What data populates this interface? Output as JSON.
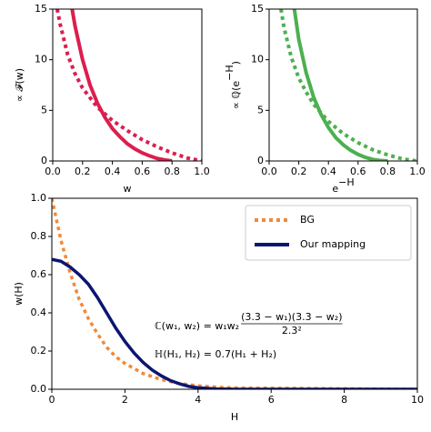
{
  "chart_data": [
    {
      "type": "line",
      "xlabel": {
        "base": "w"
      },
      "ylabel": {
        "base": "∝ 𝓕(w)"
      },
      "xlim": [
        0,
        1
      ],
      "ylim": [
        0,
        15
      ],
      "xticks": [
        {
          "value": 0,
          "label": "0.0"
        },
        {
          "value": 0.2,
          "label": "0.2"
        },
        {
          "value": 0.4,
          "label": "0.4"
        },
        {
          "value": 0.6,
          "label": "0.6"
        },
        {
          "value": 0.8,
          "label": "0.8"
        },
        {
          "value": 1,
          "label": "1.0"
        }
      ],
      "yticks": [
        0,
        5,
        10,
        15
      ],
      "series": [
        {
          "color": "#dc1e4e",
          "style": "dotted",
          "x": [
            0.03,
            0.05,
            0.1,
            0.15,
            0.2,
            0.3,
            0.4,
            0.5,
            0.6,
            0.7,
            0.8,
            0.9,
            1.0
          ],
          "values": [
            15,
            13.5,
            10.5,
            8.6,
            7.2,
            5.3,
            4,
            3,
            2.1,
            1.4,
            0.8,
            0.3,
            0
          ]
        },
        {
          "color": "#dc1e4e",
          "style": "solid",
          "x": [
            0.13,
            0.15,
            0.2,
            0.25,
            0.3,
            0.35,
            0.4,
            0.45,
            0.5,
            0.55,
            0.6,
            0.65,
            0.7,
            0.75,
            0.8
          ],
          "values": [
            15,
            13.3,
            10,
            7.5,
            5.7,
            4.3,
            3.2,
            2.4,
            1.7,
            1.2,
            0.8,
            0.5,
            0.25,
            0.1,
            0
          ]
        }
      ]
    },
    {
      "type": "line",
      "xlabel": {
        "base": "e",
        "sup": "−H"
      },
      "ylabel": {
        "base": "∝ ℚ(e",
        "sup": "−H",
        "tail": ")"
      },
      "xlim": [
        0,
        1
      ],
      "ylim": [
        0,
        15
      ],
      "xticks": [
        {
          "value": 0,
          "label": "0.0"
        },
        {
          "value": 0.2,
          "label": "0.2"
        },
        {
          "value": 0.4,
          "label": "0.4"
        },
        {
          "value": 0.6,
          "label": "0.6"
        },
        {
          "value": 0.8,
          "label": "0.8"
        },
        {
          "value": 1,
          "label": "1.0"
        }
      ],
      "yticks": [
        0,
        5,
        10,
        15
      ],
      "series": [
        {
          "color": "#4cb050",
          "style": "dotted",
          "x": [
            0.08,
            0.1,
            0.15,
            0.2,
            0.25,
            0.3,
            0.4,
            0.5,
            0.6,
            0.7,
            0.8,
            0.9,
            1.0
          ],
          "values": [
            15,
            13.2,
            10.2,
            8.2,
            6.8,
            5.6,
            3.9,
            2.7,
            1.8,
            1.1,
            0.6,
            0.2,
            0
          ]
        },
        {
          "color": "#4cb050",
          "style": "solid",
          "x": [
            0.17,
            0.2,
            0.25,
            0.3,
            0.35,
            0.4,
            0.45,
            0.5,
            0.55,
            0.6,
            0.65,
            0.7,
            0.75,
            0.8
          ],
          "values": [
            15,
            12,
            8.7,
            6.3,
            4.6,
            3.3,
            2.3,
            1.6,
            1.05,
            0.65,
            0.35,
            0.15,
            0.05,
            0
          ]
        }
      ]
    },
    {
      "type": "line",
      "xlabel": {
        "base": "H"
      },
      "ylabel": {
        "base": "w(H)"
      },
      "xlim": [
        0,
        10
      ],
      "ylim": [
        0,
        1
      ],
      "xticks": [
        0,
        2,
        4,
        6,
        8,
        10
      ],
      "yticks": [
        {
          "value": 0,
          "label": "0.0"
        },
        {
          "value": 0.2,
          "label": "0.2"
        },
        {
          "value": 0.4,
          "label": "0.4"
        },
        {
          "value": 0.6,
          "label": "0.6"
        },
        {
          "value": 0.8,
          "label": "0.8"
        },
        {
          "value": 1,
          "label": "1.0"
        }
      ],
      "legend": "upper right",
      "annotation": {
        "lhs": "ℂ(w₁, w₂) = w₁w₂",
        "numerator": "(3.3 − w₁)(3.3 − w₂)",
        "denominator": "2.3²",
        "line2": "ℍ(H₁, H₂) = 0.7(H₁ + H₂)"
      },
      "series": [
        {
          "name": "BG",
          "color": "#f08a3a",
          "style": "dotted",
          "x": [
            0,
            0.25,
            0.5,
            0.75,
            1,
            1.25,
            1.5,
            1.75,
            2,
            2.5,
            3,
            3.5,
            4,
            4.5,
            5,
            10
          ],
          "values": [
            1,
            0.78,
            0.61,
            0.47,
            0.37,
            0.29,
            0.22,
            0.17,
            0.135,
            0.082,
            0.05,
            0.03,
            0.018,
            0.011,
            0.007,
            0
          ]
        },
        {
          "name": "Our mapping",
          "color": "#0c1670",
          "style": "solid",
          "x": [
            0,
            0.25,
            0.5,
            0.75,
            1,
            1.25,
            1.5,
            1.75,
            2,
            2.25,
            2.5,
            2.75,
            3,
            3.25,
            3.5,
            3.75,
            4,
            4.5,
            5,
            10
          ],
          "values": [
            0.68,
            0.67,
            0.64,
            0.6,
            0.55,
            0.48,
            0.4,
            0.32,
            0.25,
            0.19,
            0.14,
            0.1,
            0.07,
            0.045,
            0.028,
            0.015,
            0.008,
            0.002,
            0,
            0
          ]
        }
      ]
    }
  ]
}
